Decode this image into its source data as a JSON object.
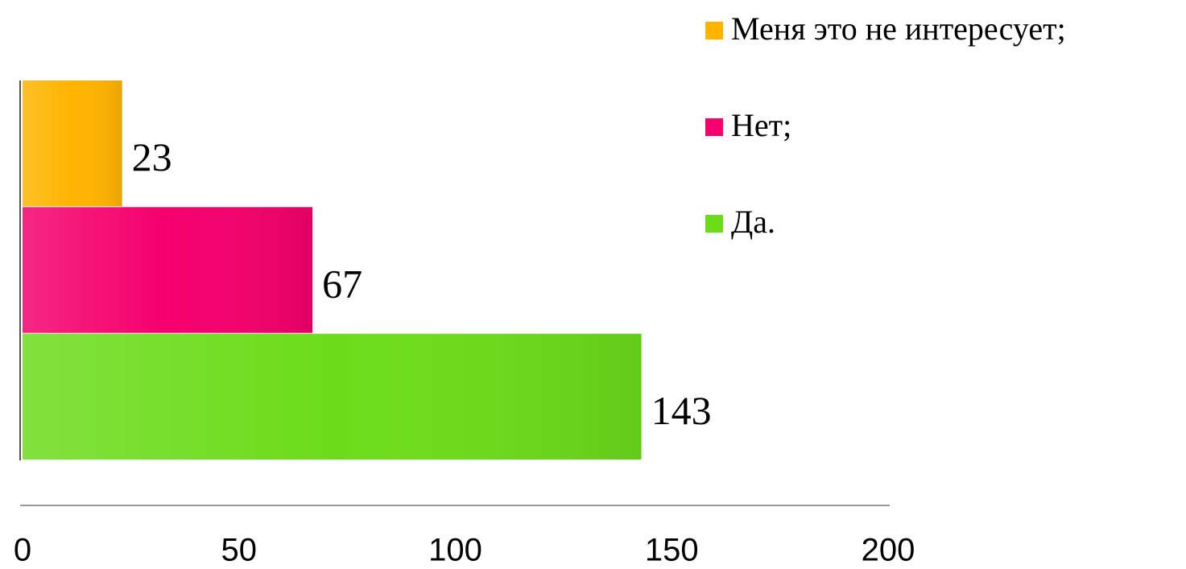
{
  "chart_data": {
    "type": "bar",
    "orientation": "horizontal",
    "series": [
      {
        "name": "Меня это не интересует;",
        "color": "#ffb400",
        "values": [
          23
        ]
      },
      {
        "name": "Нет;",
        "color": "#f5006e",
        "values": [
          67
        ]
      },
      {
        "name": "Да.",
        "color": "#6cdc1a",
        "values": [
          143
        ]
      }
    ],
    "xlim": [
      0,
      200
    ],
    "xticks": [
      0,
      50,
      100,
      150,
      200
    ],
    "legend": "top-right"
  }
}
